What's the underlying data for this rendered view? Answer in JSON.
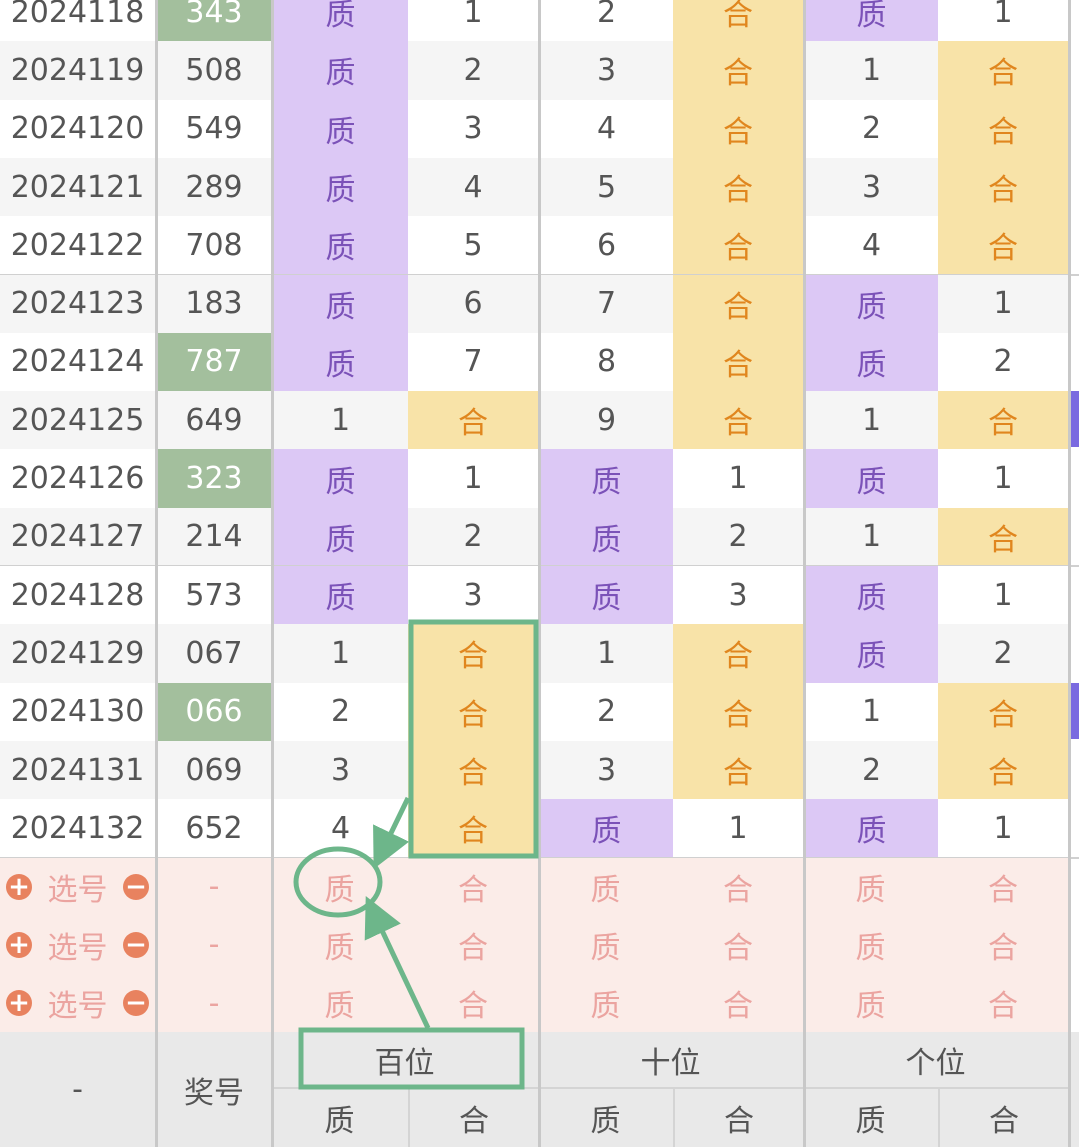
{
  "rows": [
    {
      "period": "2024118",
      "number": "343",
      "cells": [
        "质",
        "1",
        "2",
        "合",
        "质",
        "1"
      ]
    },
    {
      "period": "2024119",
      "number": "508",
      "cells": [
        "质",
        "2",
        "3",
        "合",
        "1",
        "合"
      ]
    },
    {
      "period": "2024120",
      "number": "549",
      "cells": [
        "质",
        "3",
        "4",
        "合",
        "2",
        "合"
      ]
    },
    {
      "period": "2024121",
      "number": "289",
      "cells": [
        "质",
        "4",
        "5",
        "合",
        "3",
        "合"
      ]
    },
    {
      "period": "2024122",
      "number": "708",
      "cells": [
        "质",
        "5",
        "6",
        "合",
        "4",
        "合"
      ]
    },
    {
      "period": "2024123",
      "number": "183",
      "cells": [
        "质",
        "6",
        "7",
        "合",
        "质",
        "1"
      ]
    },
    {
      "period": "2024124",
      "number": "787",
      "cells": [
        "质",
        "7",
        "8",
        "合",
        "质",
        "2"
      ]
    },
    {
      "period": "2024125",
      "number": "649",
      "cells": [
        "1",
        "合",
        "9",
        "合",
        "1",
        "合"
      ]
    },
    {
      "period": "2024126",
      "number": "323",
      "cells": [
        "质",
        "1",
        "质",
        "1",
        "质",
        "1"
      ]
    },
    {
      "period": "2024127",
      "number": "214",
      "cells": [
        "质",
        "2",
        "质",
        "2",
        "1",
        "合"
      ]
    },
    {
      "period": "2024128",
      "number": "573",
      "cells": [
        "质",
        "3",
        "质",
        "3",
        "质",
        "1"
      ]
    },
    {
      "period": "2024129",
      "number": "067",
      "cells": [
        "1",
        "合",
        "1",
        "合",
        "质",
        "2"
      ]
    },
    {
      "period": "2024130",
      "number": "066",
      "cells": [
        "2",
        "合",
        "2",
        "合",
        "1",
        "合"
      ]
    },
    {
      "period": "2024131",
      "number": "069",
      "cells": [
        "3",
        "合",
        "3",
        "合",
        "2",
        "合"
      ]
    },
    {
      "period": "2024132",
      "number": "652",
      "cells": [
        "4",
        "合",
        "质",
        "1",
        "质",
        "1"
      ]
    }
  ],
  "pick_rows": [
    {
      "label": "选号",
      "number": "-",
      "cells": [
        "质",
        "合",
        "质",
        "合",
        "质",
        "合"
      ]
    },
    {
      "label": "选号",
      "number": "-",
      "cells": [
        "质",
        "合",
        "质",
        "合",
        "质",
        "合"
      ]
    },
    {
      "label": "选号",
      "number": "-",
      "cells": [
        "质",
        "合",
        "质",
        "合",
        "质",
        "合"
      ]
    }
  ],
  "footer": {
    "corner": "-",
    "number_header": "奖号",
    "groups": [
      {
        "title": "百位",
        "subs": [
          "质",
          "合"
        ]
      },
      {
        "title": "十位",
        "subs": [
          "质",
          "合"
        ]
      },
      {
        "title": "个位",
        "subs": [
          "质",
          "合"
        ]
      }
    ]
  }
}
